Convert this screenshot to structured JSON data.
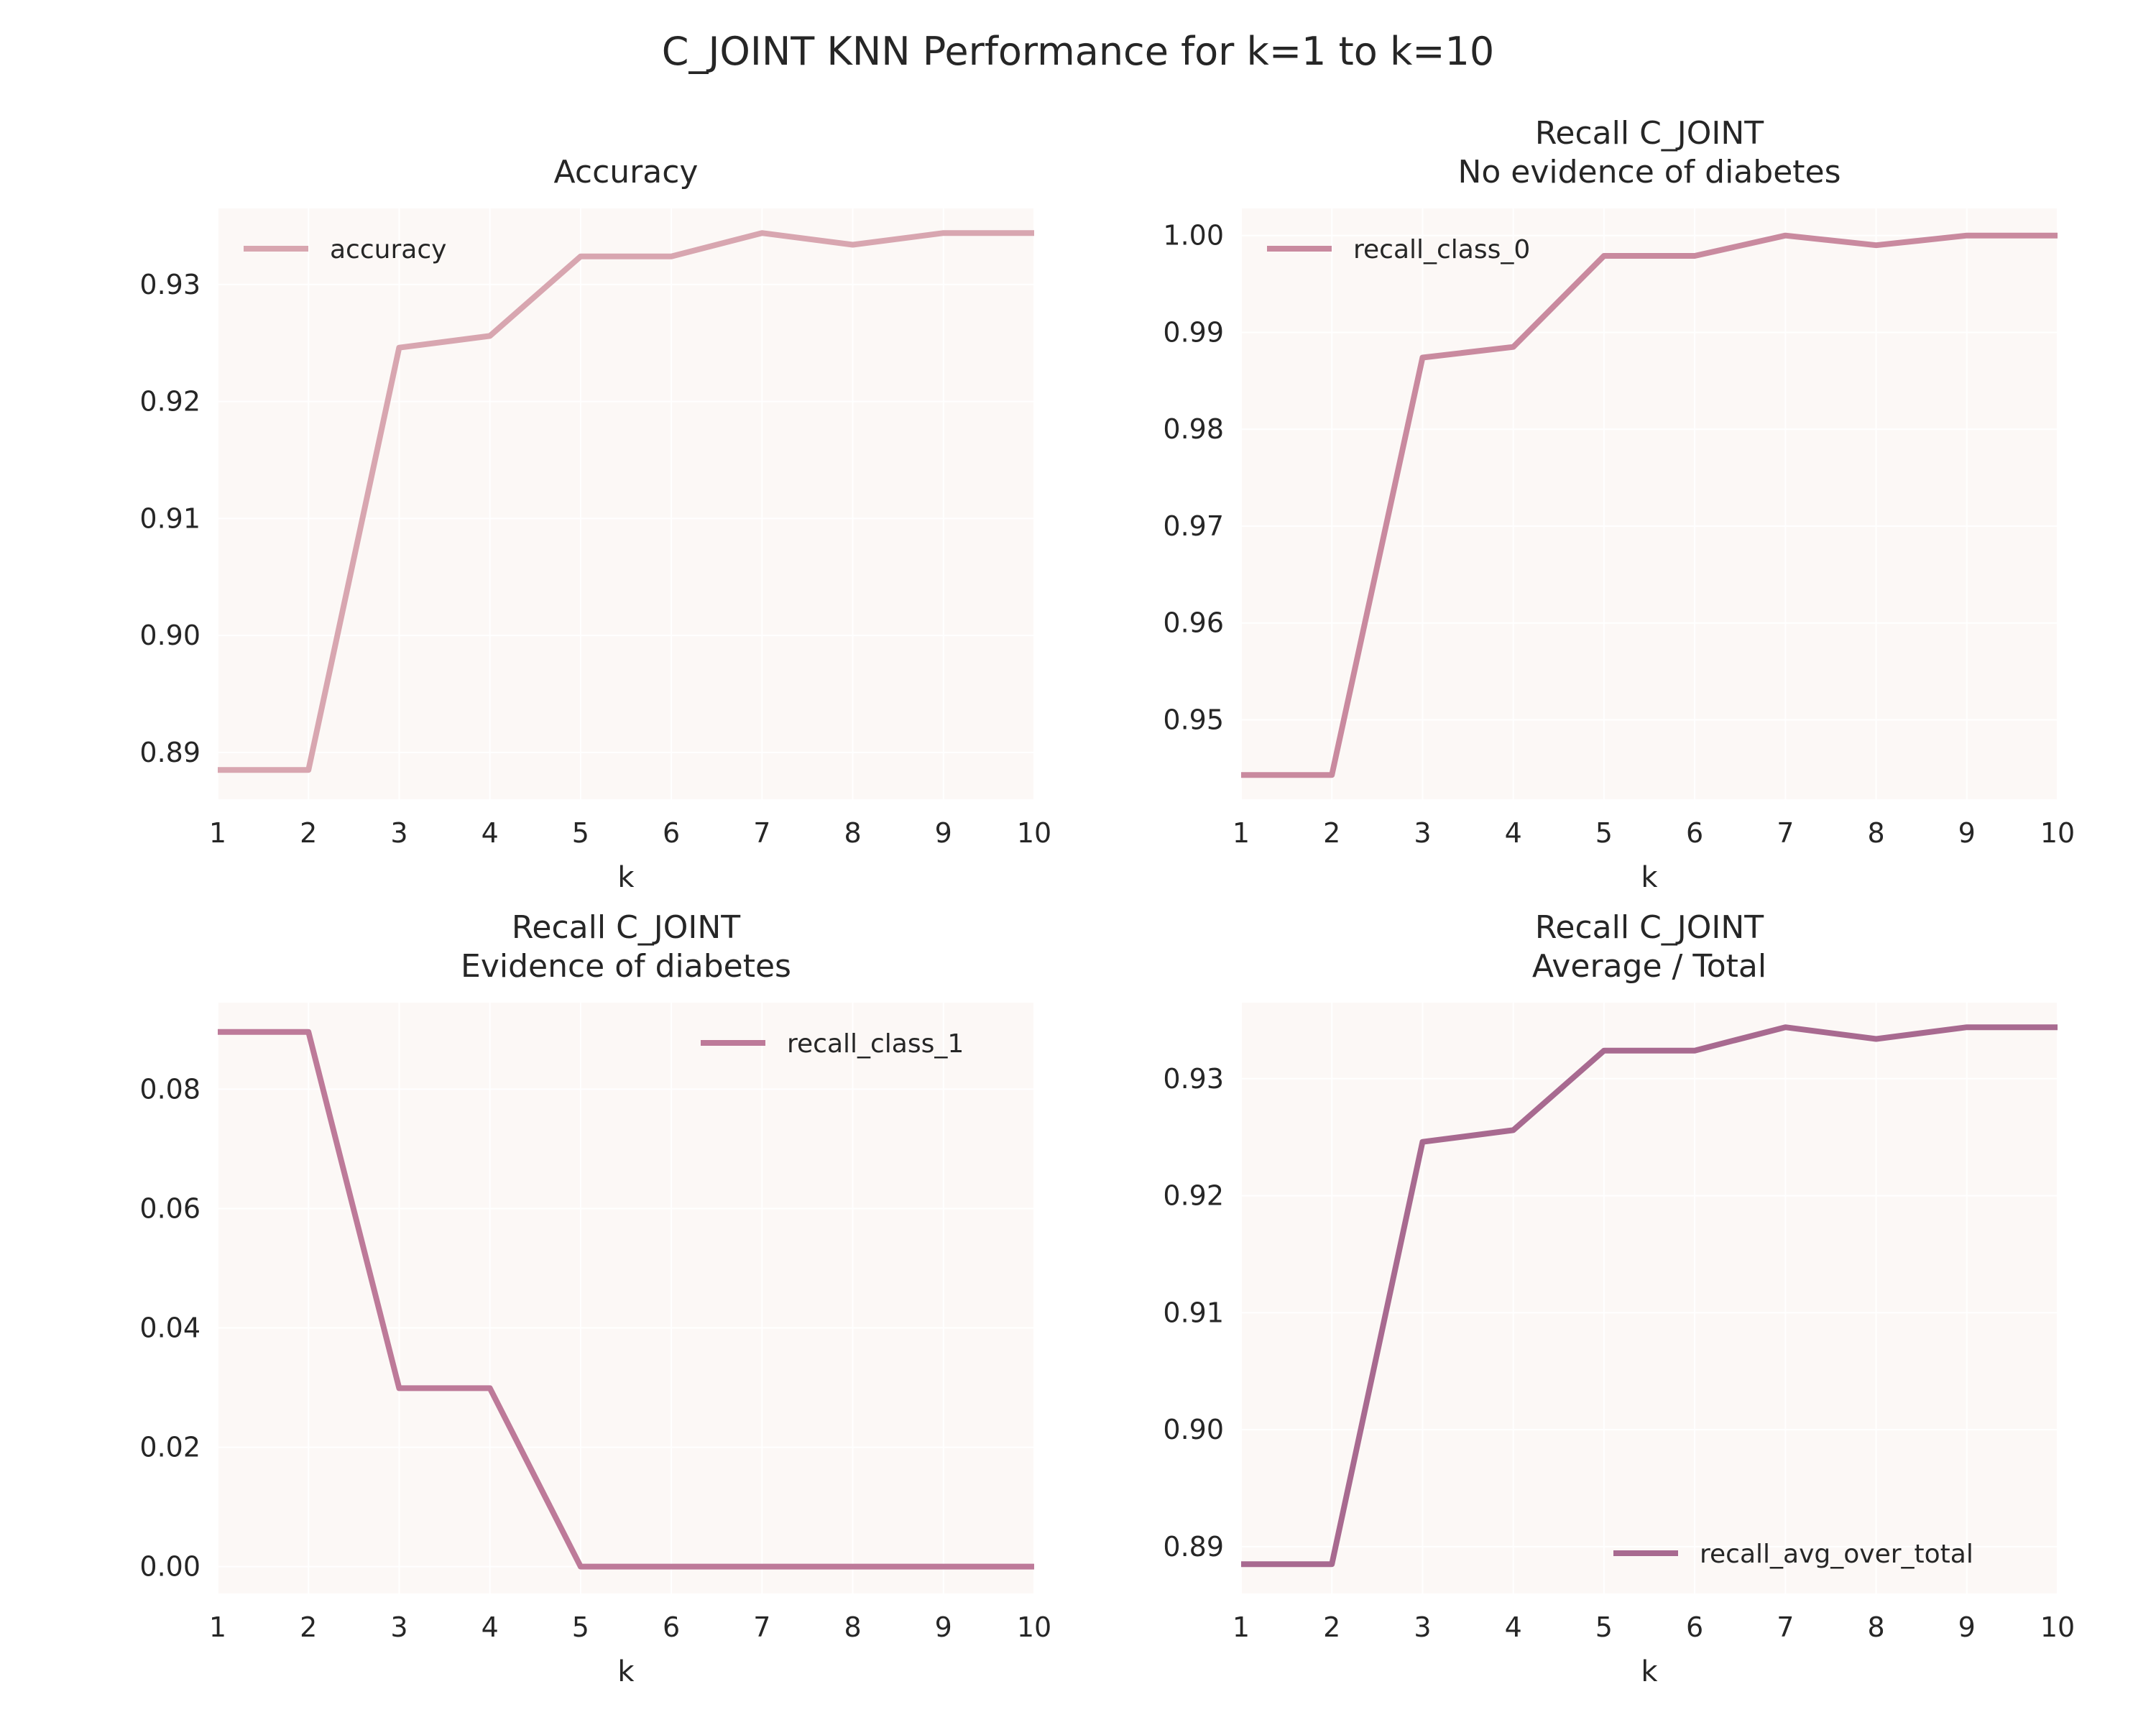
{
  "figure": {
    "title": "C_JOINT KNN Performance for k=1 to k=10"
  },
  "chart_data": [
    {
      "type": "line",
      "title": [
        "Accuracy"
      ],
      "xlabel": "k",
      "ylabel": "",
      "x": [
        1,
        2,
        3,
        4,
        5,
        6,
        7,
        8,
        9,
        10
      ],
      "xticks": [
        1,
        2,
        3,
        4,
        5,
        6,
        7,
        8,
        9,
        10
      ],
      "xlim": [
        1,
        10
      ],
      "yticks": [
        0.89,
        0.9,
        0.91,
        0.92,
        0.93
      ],
      "ytick_labels": [
        "0.89",
        "0.90",
        "0.91",
        "0.92",
        "0.93"
      ],
      "ylim": [
        0.886,
        0.9365
      ],
      "grid": true,
      "legend_position": "upper-left",
      "series": [
        {
          "name": "accuracy",
          "color": "#d8a6b0",
          "values": [
            0.8885,
            0.8885,
            0.9246,
            0.9256,
            0.9324,
            0.9324,
            0.9344,
            0.9334,
            0.9344,
            0.9344
          ]
        }
      ]
    },
    {
      "type": "line",
      "title": [
        "Recall C_JOINT",
        "No evidence of diabetes"
      ],
      "xlabel": "k",
      "ylabel": "",
      "x": [
        1,
        2,
        3,
        4,
        5,
        6,
        7,
        8,
        9,
        10
      ],
      "xticks": [
        1,
        2,
        3,
        4,
        5,
        6,
        7,
        8,
        9,
        10
      ],
      "xlim": [
        1,
        10
      ],
      "yticks": [
        0.95,
        0.96,
        0.97,
        0.98,
        0.99,
        1.0
      ],
      "ytick_labels": [
        "0.95",
        "0.96",
        "0.97",
        "0.98",
        "0.99",
        "1.00"
      ],
      "ylim": [
        0.9418,
        1.0028
      ],
      "grid": true,
      "legend_position": "upper-left",
      "series": [
        {
          "name": "recall_class_0",
          "color": "#c98a9f",
          "values": [
            0.9443,
            0.9443,
            0.9874,
            0.9885,
            0.9979,
            0.9979,
            1.0,
            0.999,
            1.0,
            1.0
          ]
        }
      ]
    },
    {
      "type": "line",
      "title": [
        "Recall C_JOINT",
        "Evidence of diabetes"
      ],
      "xlabel": "k",
      "ylabel": "",
      "x": [
        1,
        2,
        3,
        4,
        5,
        6,
        7,
        8,
        9,
        10
      ],
      "xticks": [
        1,
        2,
        3,
        4,
        5,
        6,
        7,
        8,
        9,
        10
      ],
      "xlim": [
        1,
        10
      ],
      "yticks": [
        0.0,
        0.02,
        0.04,
        0.06,
        0.08
      ],
      "ytick_labels": [
        "0.00",
        "0.02",
        "0.04",
        "0.06",
        "0.08"
      ],
      "ylim": [
        -0.0045,
        0.0945
      ],
      "grid": true,
      "legend_position": "upper-right",
      "series": [
        {
          "name": "recall_class_1",
          "color": "#bd7a99",
          "values": [
            0.0896,
            0.0896,
            0.0299,
            0.0299,
            0.0,
            0.0,
            0.0,
            0.0,
            0.0,
            0.0
          ]
        }
      ]
    },
    {
      "type": "line",
      "title": [
        "Recall C_JOINT",
        "Average / Total"
      ],
      "xlabel": "k",
      "ylabel": "",
      "x": [
        1,
        2,
        3,
        4,
        5,
        6,
        7,
        8,
        9,
        10
      ],
      "xticks": [
        1,
        2,
        3,
        4,
        5,
        6,
        7,
        8,
        9,
        10
      ],
      "xlim": [
        1,
        10
      ],
      "yticks": [
        0.89,
        0.9,
        0.91,
        0.92,
        0.93
      ],
      "ytick_labels": [
        "0.89",
        "0.90",
        "0.91",
        "0.92",
        "0.93"
      ],
      "ylim": [
        0.886,
        0.9365
      ],
      "grid": true,
      "legend_position": "lower-right",
      "series": [
        {
          "name": "recall_avg_over_total",
          "color": "#a86a90",
          "values": [
            0.8885,
            0.8885,
            0.9246,
            0.9256,
            0.9324,
            0.9324,
            0.9344,
            0.9334,
            0.9344,
            0.9344
          ]
        }
      ]
    }
  ]
}
